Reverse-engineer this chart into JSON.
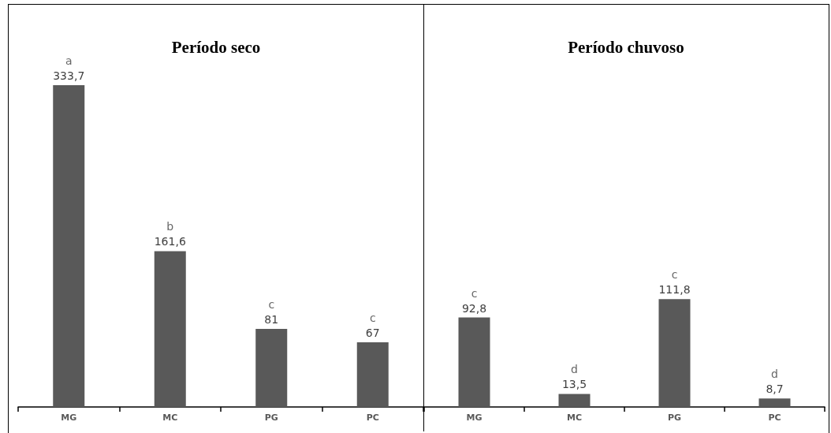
{
  "chart_data": [
    {
      "type": "bar",
      "title": "Período seco",
      "categories": [
        "MG",
        "MC",
        "PG",
        "PC"
      ],
      "values": [
        333.7,
        161.6,
        81,
        67
      ],
      "value_labels": [
        "333,7",
        "161,6",
        "81",
        "67"
      ],
      "color": "#595959",
      "annotations": [
        {
          "text": "a",
          "x": "MG",
          "y": 333.7
        },
        {
          "text": "b",
          "x": "MC",
          "y": 161.6
        },
        {
          "text": "c",
          "x": "PG",
          "y": 81
        },
        {
          "text": "c",
          "x": "PC",
          "y": 67
        }
      ],
      "grid": false
    },
    {
      "type": "bar",
      "title": "Período chuvoso",
      "categories": [
        "MG",
        "MC",
        "PG",
        "PC"
      ],
      "values": [
        92.8,
        13.5,
        111.8,
        8.7
      ],
      "value_labels": [
        "92,8",
        "13,5",
        "111,8",
        "8,7"
      ],
      "color": "#595959",
      "annotations": [
        {
          "text": "c",
          "x": "MG",
          "y": 92.8
        },
        {
          "text": "d",
          "x": "MC",
          "y": 13.5
        },
        {
          "text": "c",
          "x": "PG",
          "y": 111.8
        },
        {
          "text": "d",
          "x": "PC",
          "y": 8.7
        }
      ],
      "grid": false
    }
  ]
}
